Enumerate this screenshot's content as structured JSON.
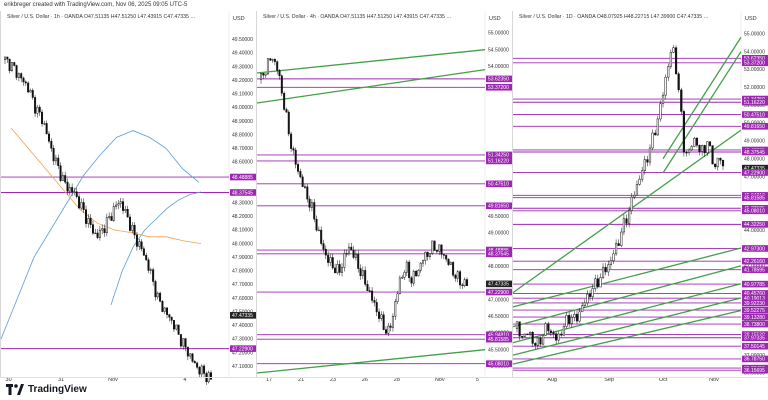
{
  "header": {
    "caption": "erikbreger created with TradingView.com, Nov 06, 2025 09:05 UTC-5"
  },
  "footer": {
    "brand": "TradingView"
  },
  "colors": {
    "purple": "#9c27b0",
    "green": "#43a047",
    "blue": "#5b9bd5",
    "orange": "#f0a050",
    "candle": "#111111",
    "cur": "#222222"
  },
  "panels": [
    {
      "id": "p1",
      "title": "Silver / U.S. Dollar · 1h · OANDA   O47.51135  H47.51250  L47.43915  C47.47335 …",
      "currency": "USD",
      "ymin": 47.05,
      "ymax": 49.62,
      "ticks": [
        "49.50000",
        "49.40000",
        "49.30000",
        "49.20000",
        "49.10000",
        "49.00000",
        "48.90000",
        "48.80000",
        "48.70000",
        "48.60000",
        "48.30000",
        "48.20000",
        "48.10000",
        "48.00000",
        "47.90000",
        "47.80000",
        "47.70000",
        "47.60000",
        "47.50000",
        "47.40000",
        "47.30000",
        "47.20000",
        "47.10000"
      ],
      "tags": [
        {
          "text": "48.48885",
          "price": 48.48885
        },
        {
          "text": "48.37545",
          "price": 48.37545
        },
        {
          "text": "47.47335",
          "price": 47.47335,
          "cur": true
        },
        {
          "text": "47.22900",
          "price": 47.229
        }
      ],
      "xlabels": [
        {
          "t": "30",
          "f": 0.02
        },
        {
          "t": "31",
          "f": 0.25
        },
        {
          "t": "Nov",
          "f": 0.47
        },
        {
          "t": "4",
          "f": 0.8
        }
      ],
      "curve": [
        49.35,
        49.3,
        49.22,
        49.15,
        49.0,
        48.9,
        48.7,
        48.55,
        48.42,
        48.38,
        48.27,
        48.15,
        48.05,
        48.12,
        48.22,
        48.32,
        48.2,
        48.05,
        47.95,
        47.8,
        47.6,
        47.5,
        47.42,
        47.3,
        47.2,
        47.1,
        47.05,
        47.0
      ],
      "blue": [
        47.3,
        47.6,
        47.9,
        48.1,
        48.3,
        48.5,
        48.65,
        48.78,
        48.83,
        48.78,
        48.7,
        48.55,
        48.45
      ],
      "blue2": [
        47.55,
        47.8,
        47.98,
        48.1,
        48.18,
        48.26,
        48.32,
        48.36,
        48.38
      ],
      "orange": [
        48.85,
        48.7,
        48.55,
        48.4,
        48.25,
        48.15,
        48.1,
        48.08,
        48.05,
        48.05,
        48.02,
        48.0
      ]
    },
    {
      "id": "p2",
      "title": "Silver / U.S. Dollar · 4h · OANDA   O47.51135  H47.51250  L47.43915  C47.47335 …",
      "currency": "USD",
      "ymin": 44.8,
      "ymax": 55.3,
      "ticks": [
        "55.00000",
        "54.50000",
        "54.00000",
        "49.50000",
        "49.00000",
        "48.50000",
        "48.00000",
        "47.50000",
        "47.00000",
        "46.50000",
        "46.00000",
        "45.50000",
        "45.00000"
      ],
      "tags": [
        {
          "text": "53.62350",
          "price": 53.6235
        },
        {
          "text": "53.37200",
          "price": 53.372
        },
        {
          "text": "51.34250",
          "price": 51.3425
        },
        {
          "text": "51.16220",
          "price": 51.1622
        },
        {
          "text": "50.47510",
          "price": 50.4751
        },
        {
          "text": "49.81650",
          "price": 49.8165
        },
        {
          "text": "48.48885",
          "price": 48.48885
        },
        {
          "text": "48.37545",
          "price": 48.37545
        },
        {
          "text": "47.47335",
          "price": 47.47335,
          "cur": true
        },
        {
          "text": "47.22900",
          "price": 47.229
        },
        {
          "text": "45.94810",
          "price": 45.9481
        },
        {
          "text": "45.81585",
          "price": 45.81585
        },
        {
          "text": "45.08010",
          "price": 45.0801
        }
      ],
      "xlabels": [
        {
          "t": "17",
          "f": 0.04
        },
        {
          "t": "21",
          "f": 0.18
        },
        {
          "t": "23",
          "f": 0.32
        },
        {
          "t": "26",
          "f": 0.46
        },
        {
          "t": "28",
          "f": 0.6
        },
        {
          "t": "Nov",
          "f": 0.78
        },
        {
          "t": "5",
          "f": 0.96
        }
      ],
      "curve": [
        53.6,
        54.0,
        54.3,
        53.9,
        53.0,
        52.0,
        51.2,
        50.7,
        50.2,
        49.8,
        49.2,
        48.6,
        48.2,
        48.0,
        47.8,
        48.3,
        48.6,
        48.2,
        47.8,
        47.4,
        47.0,
        46.6,
        46.2,
        46.0,
        46.8,
        47.6,
        48.0,
        47.6,
        47.8,
        48.2,
        48.4,
        48.6,
        48.5,
        48.3,
        48.0,
        47.7,
        47.5,
        47.47
      ]
    },
    {
      "id": "p3",
      "title": "Silver / U.S. Dollar · 1D · OANDA   O48.07925  H48.22715  L47.39900  C47.47335 …",
      "currency": "USD",
      "ymin": 36.0,
      "ymax": 55.6,
      "ticks": [
        "55.00000",
        "54.00000",
        "53.00000",
        "52.00000",
        "51.00000",
        "50.00000",
        "49.00000",
        "48.00000",
        "47.00000",
        "46.00000",
        "45.00000",
        "44.00000",
        "43.00000",
        "42.00000",
        "41.00000",
        "40.00000",
        "39.00000",
        "38.00000",
        "37.00000",
        "36.00000"
      ],
      "tags": [
        {
          "text": "53.62350",
          "price": 53.6235
        },
        {
          "text": "53.37200",
          "price": 53.372
        },
        {
          "text": "51.34250",
          "price": 51.3425
        },
        {
          "text": "51.16220",
          "price": 51.1622
        },
        {
          "text": "50.47510",
          "price": 50.4751
        },
        {
          "text": "49.81650",
          "price": 49.8165
        },
        {
          "text": "48.48885",
          "price": 48.48885
        },
        {
          "text": "48.37545",
          "price": 48.37545
        },
        {
          "text": "47.47335",
          "price": 47.47335,
          "cur": true
        },
        {
          "text": "47.22900",
          "price": 47.229
        },
        {
          "text": "45.94810",
          "price": 45.9481
        },
        {
          "text": "45.81585",
          "price": 45.81585
        },
        {
          "text": "45.22585",
          "price": 45.22585
        },
        {
          "text": "45.08010",
          "price": 45.0801
        },
        {
          "text": "44.32250",
          "price": 44.3225
        },
        {
          "text": "42.97300",
          "price": 42.973
        },
        {
          "text": "42.26160",
          "price": 42.2616
        },
        {
          "text": "41.78595",
          "price": 41.78595
        },
        {
          "text": "40.97785",
          "price": 40.97785
        },
        {
          "text": "40.45760",
          "price": 40.4576
        },
        {
          "text": "40.19013",
          "price": 40.19013
        },
        {
          "text": "39.92230",
          "price": 39.9223
        },
        {
          "text": "39.52275",
          "price": 39.52275
        },
        {
          "text": "39.13280",
          "price": 39.1328
        },
        {
          "text": "38.73800",
          "price": 38.738
        },
        {
          "text": "38.15530",
          "price": 38.1553
        },
        {
          "text": "37.97335",
          "price": 37.97335
        },
        {
          "text": "37.50145",
          "price": 37.50145
        },
        {
          "text": "36.78750",
          "price": 36.7875
        },
        {
          "text": "36.27450",
          "price": 36.2745
        },
        {
          "text": "36.15695",
          "price": 36.15695
        }
      ],
      "xlabels": [
        {
          "t": "Aug",
          "f": 0.15
        },
        {
          "t": "Sep",
          "f": 0.4
        },
        {
          "t": "Oct",
          "f": 0.64
        },
        {
          "t": "Nov",
          "f": 0.86
        }
      ],
      "curve": [
        38.5,
        38.2,
        38.0,
        38.4,
        37.8,
        37.5,
        37.9,
        38.3,
        38.6,
        38.2,
        37.9,
        38.1,
        38.6,
        39.0,
        39.2,
        38.9,
        39.4,
        39.8,
        40.2,
        40.6,
        40.9,
        41.2,
        41.6,
        41.9,
        42.2,
        42.8,
        43.3,
        44.0,
        44.6,
        45.2,
        46.0,
        46.6,
        47.2,
        47.8,
        48.4,
        49.2,
        50.0,
        51.0,
        52.2,
        53.4,
        54.3,
        53.0,
        51.0,
        48.5,
        48.2,
        48.8,
        49.2,
        48.3,
        48.6,
        48.9,
        48.2,
        47.5,
        48.2,
        47.47
      ]
    }
  ]
}
